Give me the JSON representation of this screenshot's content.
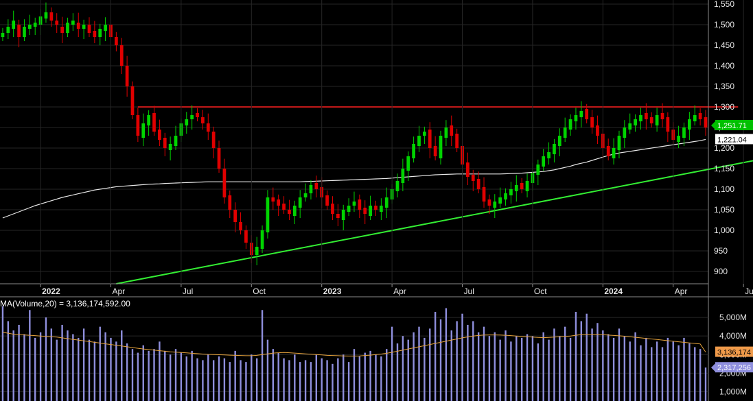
{
  "colors": {
    "background": "#000000",
    "grid": "#262626",
    "axis_line": "#8a8a8a",
    "up": "#00d400",
    "down": "#e00000",
    "ma_price": "#e8e8e8",
    "resistance": "#ff2020",
    "support": "#33ee33",
    "volume": "#8f8fdd",
    "volume_ma": "#e5a23c",
    "badge_last": "#00c000",
    "badge_ma": "#ffffff",
    "badge_vol_ma": "#ef9a4a",
    "badge_vol": "#8f8fdd"
  },
  "chart_data": [
    {
      "type": "candlestick",
      "ylim": [
        870,
        1560
      ],
      "y_ticks": [
        "900",
        "950",
        "1,000",
        "1,050",
        "1,100",
        "1,150",
        "1,200",
        "1,250",
        "1,300",
        "1,350",
        "1,400",
        "1,450",
        "1,500",
        "1,550"
      ],
      "y_tick_values": [
        900,
        950,
        1000,
        1050,
        1100,
        1150,
        1200,
        1250,
        1300,
        1350,
        1400,
        1450,
        1500,
        1550
      ],
      "x_ticks": [
        {
          "label": "2022",
          "index": 7,
          "bold": true
        },
        {
          "label": "Apr",
          "index": 20,
          "bold": false
        },
        {
          "label": "Jul",
          "index": 33,
          "bold": false
        },
        {
          "label": "Oct",
          "index": 46,
          "bold": false
        },
        {
          "label": "2023",
          "index": 59,
          "bold": true
        },
        {
          "label": "Apr",
          "index": 72,
          "bold": false
        },
        {
          "label": "Jul",
          "index": 85,
          "bold": false
        },
        {
          "label": "Oct",
          "index": 98,
          "bold": false
        },
        {
          "label": "2024",
          "index": 111,
          "bold": true
        },
        {
          "label": "Apr",
          "index": 124,
          "bold": false
        },
        {
          "label": "Jul",
          "index": 137,
          "bold": false
        }
      ],
      "closes": [
        1480,
        1495,
        1510,
        1470,
        1495,
        1500,
        1505,
        1520,
        1530,
        1510,
        1500,
        1480,
        1505,
        1510,
        1490,
        1500,
        1480,
        1470,
        1490,
        1500,
        1470,
        1450,
        1400,
        1350,
        1280,
        1230,
        1260,
        1280,
        1240,
        1220,
        1200,
        1210,
        1230,
        1260,
        1270,
        1280,
        1275,
        1260,
        1240,
        1200,
        1150,
        1080,
        1050,
        1020,
        1000,
        970,
        940,
        960,
        1000,
        1080,
        1070,
        1060,
        1050,
        1040,
        1060,
        1080,
        1090,
        1110,
        1100,
        1080,
        1060,
        1040,
        1030,
        1050,
        1060,
        1070,
        1050,
        1040,
        1060,
        1050,
        1060,
        1080,
        1100,
        1120,
        1150,
        1180,
        1210,
        1230,
        1240,
        1200,
        1180,
        1230,
        1250,
        1230,
        1200,
        1160,
        1130,
        1120,
        1100,
        1070,
        1060,
        1070,
        1080,
        1090,
        1100,
        1110,
        1100,
        1120,
        1140,
        1160,
        1180,
        1190,
        1210,
        1230,
        1250,
        1270,
        1280,
        1290,
        1270,
        1250,
        1230,
        1200,
        1180,
        1200,
        1230,
        1250,
        1260,
        1270,
        1280,
        1270,
        1260,
        1280,
        1270,
        1240,
        1220,
        1230,
        1250,
        1270,
        1280,
        1270,
        1250
      ],
      "opens": [
        1470,
        1480,
        1490,
        1500,
        1470,
        1490,
        1495,
        1500,
        1515,
        1530,
        1510,
        1495,
        1480,
        1500,
        1505,
        1490,
        1500,
        1485,
        1470,
        1485,
        1500,
        1470,
        1450,
        1400,
        1350,
        1280,
        1225,
        1255,
        1285,
        1245,
        1225,
        1195,
        1205,
        1230,
        1255,
        1270,
        1285,
        1275,
        1260,
        1240,
        1200,
        1150,
        1085,
        1050,
        1020,
        1000,
        970,
        940,
        955,
        995,
        1080,
        1075,
        1065,
        1050,
        1035,
        1055,
        1080,
        1090,
        1115,
        1105,
        1085,
        1065,
        1040,
        1025,
        1045,
        1060,
        1075,
        1055,
        1035,
        1060,
        1045,
        1055,
        1075,
        1095,
        1115,
        1145,
        1175,
        1205,
        1230,
        1245,
        1205,
        1175,
        1225,
        1255,
        1235,
        1205,
        1165,
        1135,
        1125,
        1105,
        1075,
        1055,
        1065,
        1075,
        1085,
        1095,
        1115,
        1095,
        1115,
        1135,
        1155,
        1175,
        1185,
        1205,
        1225,
        1245,
        1265,
        1275,
        1295,
        1275,
        1255,
        1235,
        1205,
        1175,
        1195,
        1225,
        1245,
        1255,
        1265,
        1285,
        1275,
        1255,
        1285,
        1275,
        1245,
        1215,
        1225,
        1245,
        1265,
        1285,
        1275
      ],
      "ma200": [
        1030,
        1035,
        1040,
        1045,
        1050,
        1055,
        1060,
        1064,
        1068,
        1072,
        1076,
        1080,
        1083,
        1086,
        1089,
        1092,
        1095,
        1098,
        1100,
        1102,
        1104,
        1106,
        1107,
        1108,
        1109,
        1110,
        1111,
        1112,
        1112.5,
        1113,
        1114,
        1114.5,
        1115,
        1115.5,
        1116,
        1116.5,
        1117,
        1117.5,
        1118,
        1118,
        1118,
        1118,
        1118,
        1118,
        1118,
        1118,
        1118,
        1118,
        1118,
        1118,
        1118,
        1118,
        1118,
        1118,
        1118,
        1118,
        1118.5,
        1119,
        1119.5,
        1120,
        1120.5,
        1121,
        1121.5,
        1122,
        1122.5,
        1123,
        1123.5,
        1124,
        1124.5,
        1125,
        1125.5,
        1126,
        1127,
        1128,
        1129,
        1130,
        1131,
        1132,
        1133,
        1134,
        1135,
        1135.5,
        1136,
        1136.5,
        1137,
        1137,
        1137,
        1137,
        1137,
        1137,
        1137,
        1137,
        1137,
        1137.5,
        1138,
        1138.5,
        1139,
        1140,
        1141,
        1142,
        1143,
        1145,
        1147,
        1150,
        1153,
        1156,
        1160,
        1163,
        1166,
        1170,
        1174,
        1178,
        1182,
        1185,
        1188,
        1190,
        1192,
        1194,
        1196,
        1198,
        1200,
        1202,
        1204,
        1206,
        1208,
        1210,
        1212,
        1214,
        1216,
        1218,
        1221
      ],
      "resistance": {
        "value": 1300,
        "from_index": 25,
        "to_index": 136
      },
      "support": {
        "from": [
          21,
          870
        ],
        "to": [
          143,
          1180
        ]
      },
      "last_price_label": "1,251.71",
      "ma_label": "1,221.04"
    },
    {
      "type": "bar",
      "indicator": "MA(Volume,20) = 3,136,174,592.00",
      "ylim": [
        500,
        6000
      ],
      "y_ticks": [
        "1,000M",
        "2,000M",
        "3,000M",
        "4,000M",
        "5,000M"
      ],
      "y_tick_values": [
        1000,
        2000,
        3000,
        4000,
        5000
      ],
      "volume_ma_label": "3,136,174",
      "volume_label": "2,317,256",
      "volumes": [
        5600,
        4800,
        4300,
        4600,
        4100,
        5400,
        3900,
        4200,
        5000,
        4400,
        3800,
        4600,
        4300,
        4100,
        3900,
        4400,
        3800,
        3700,
        4500,
        4200,
        3900,
        3700,
        4300,
        3600,
        3300,
        3100,
        3500,
        3200,
        3300,
        3700,
        3200,
        3000,
        3300,
        3100,
        2900,
        3200,
        2800,
        2700,
        3000,
        2700,
        2900,
        2800,
        2600,
        3200,
        2700,
        2600,
        3000,
        2800,
        5400,
        3800,
        3300,
        3100,
        2800,
        2700,
        3000,
        2600,
        2700,
        2600,
        3000,
        2800,
        2700,
        2500,
        2800,
        3000,
        2600,
        3300,
        2900,
        3100,
        3200,
        3000,
        2900,
        3300,
        4500,
        3600,
        4000,
        3800,
        4200,
        4500,
        3900,
        4400,
        5300,
        4900,
        5500,
        4300,
        4800,
        5200,
        4600,
        4800,
        4200,
        4500,
        4000,
        4200,
        3800,
        4300,
        3700,
        4000,
        3900,
        4100,
        4000,
        3600,
        4200,
        3800,
        4400,
        4000,
        4500,
        3900,
        5300,
        4800,
        5200,
        4400,
        4700,
        4300,
        4100,
        3900,
        4400,
        4000,
        3700,
        4200,
        3500,
        3900,
        3400,
        3700,
        3400,
        3900,
        3700,
        3500,
        3900,
        3600,
        3400,
        3300,
        2300
      ],
      "volume_ma": [
        4200,
        4150,
        4100,
        4080,
        4060,
        4040,
        4020,
        4000,
        3980,
        3960,
        3940,
        3900,
        3860,
        3820,
        3780,
        3740,
        3700,
        3660,
        3620,
        3580,
        3540,
        3500,
        3460,
        3420,
        3380,
        3340,
        3300,
        3270,
        3240,
        3210,
        3180,
        3150,
        3130,
        3110,
        3090,
        3070,
        3050,
        3030,
        3010,
        3000,
        2990,
        2980,
        2970,
        2960,
        2950,
        2940,
        2940,
        2960,
        3000,
        3040,
        3080,
        3100,
        3110,
        3100,
        3080,
        3060,
        3040,
        3020,
        3000,
        2980,
        2960,
        2950,
        2940,
        2930,
        2920,
        2920,
        2930,
        2950,
        2970,
        3000,
        3030,
        3070,
        3120,
        3180,
        3240,
        3300,
        3360,
        3420,
        3480,
        3540,
        3600,
        3660,
        3720,
        3780,
        3840,
        3900,
        3950,
        4000,
        4030,
        4050,
        4060,
        4060,
        4050,
        4040,
        4020,
        4000,
        3980,
        3960,
        3940,
        3920,
        3910,
        3920,
        3940,
        3960,
        3980,
        4000,
        4040,
        4080,
        4100,
        4100,
        4090,
        4070,
        4050,
        4030,
        4010,
        3990,
        3960,
        3930,
        3900,
        3870,
        3840,
        3810,
        3780,
        3750,
        3720,
        3690,
        3660,
        3630,
        3600,
        3570,
        3136
      ]
    }
  ]
}
